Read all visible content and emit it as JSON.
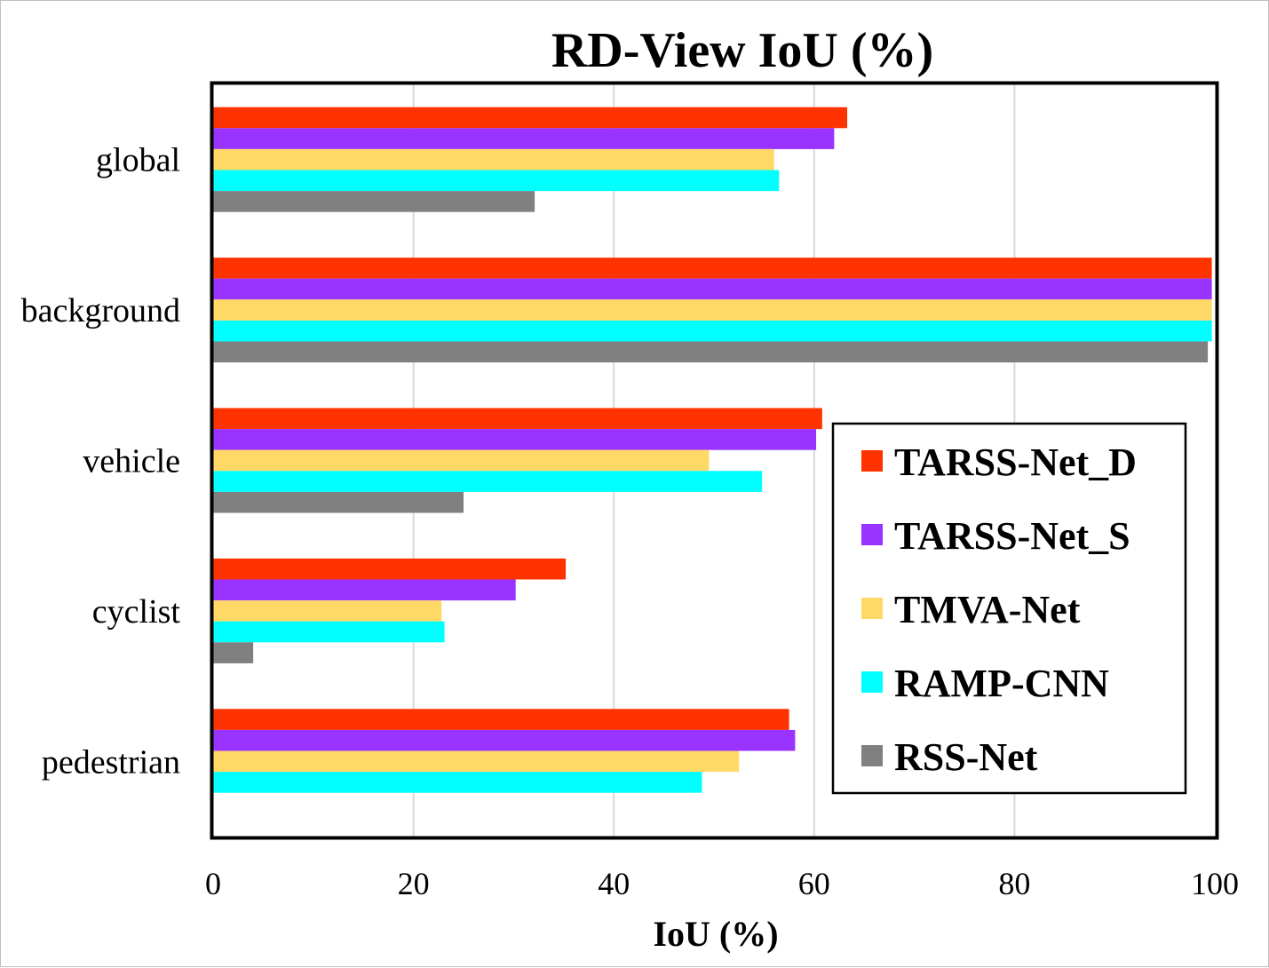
{
  "chart_data": {
    "type": "bar",
    "orientation": "horizontal",
    "title": "RD-View IoU (%)",
    "xlabel": "IoU (%)",
    "ylabel": "",
    "xlim": [
      0,
      100
    ],
    "x_ticks": [
      0,
      20,
      40,
      60,
      80,
      100
    ],
    "grid": true,
    "legend_position": "right",
    "categories": [
      "global",
      "background",
      "vehicle",
      "cyclist",
      "pedestrian"
    ],
    "series": [
      {
        "name": "TARSS-Net_D",
        "color": "#FF3300",
        "values": [
          63.3,
          99.7,
          60.8,
          35.2,
          57.5
        ]
      },
      {
        "name": "TARSS-Net_S",
        "color": "#9933FF",
        "values": [
          62.0,
          99.7,
          60.2,
          30.2,
          58.1
        ]
      },
      {
        "name": "TMVA-Net",
        "color": "#FFD966",
        "values": [
          56.0,
          99.7,
          49.5,
          22.8,
          52.5
        ]
      },
      {
        "name": "RAMP-CNN",
        "color": "#00FFFF",
        "values": [
          56.5,
          99.7,
          54.8,
          23.1,
          48.8
        ]
      },
      {
        "name": "RSS-Net",
        "color": "#808080",
        "values": [
          32.1,
          99.3,
          25.0,
          4.0,
          0
        ]
      }
    ]
  }
}
